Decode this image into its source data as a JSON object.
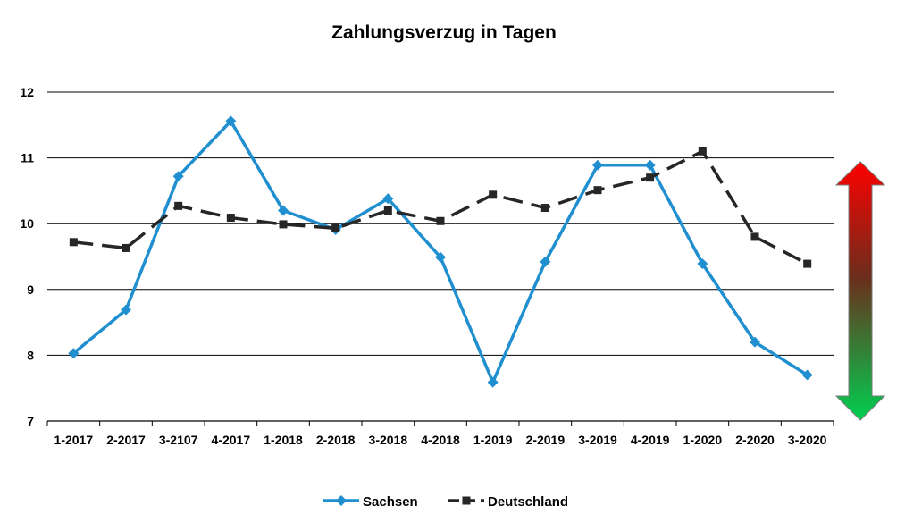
{
  "chart_data": {
    "type": "line",
    "title": "Zahlungsverzug in Tagen",
    "xlabel": "",
    "ylabel": "",
    "categories": [
      "1-2017",
      "2-2017",
      "3-2107",
      "4-2017",
      "1-2018",
      "2-2018",
      "3-2018",
      "4-2018",
      "1-2019",
      "2-2019",
      "3-2019",
      "4-2019",
      "1-2020",
      "2-2020",
      "3-2020"
    ],
    "ylim": [
      7,
      12
    ],
    "yticks": [
      7,
      8,
      9,
      10,
      11,
      12
    ],
    "grid": true,
    "legend_position": "bottom",
    "series": [
      {
        "name": "Sachsen",
        "color": "#1f8fd0",
        "line_style": "solid",
        "marker": "diamond",
        "values": [
          8.03,
          8.69,
          10.72,
          11.56,
          10.2,
          9.91,
          10.38,
          9.49,
          7.59,
          9.42,
          10.89,
          10.89,
          9.39,
          8.2,
          7.7
        ]
      },
      {
        "name": "Deutschland",
        "color": "#262626",
        "line_style": "dashed",
        "marker": "square",
        "values": [
          9.72,
          9.63,
          10.27,
          10.09,
          9.99,
          9.93,
          10.2,
          10.04,
          10.44,
          10.24,
          10.51,
          10.7,
          11.1,
          9.8,
          9.39
        ]
      }
    ],
    "annotation_arrow": {
      "shape": "double-headed-arrow",
      "top_color": "#ff0000",
      "middle_color": "#6a2e1c",
      "bottom_color": "#00d050"
    }
  }
}
